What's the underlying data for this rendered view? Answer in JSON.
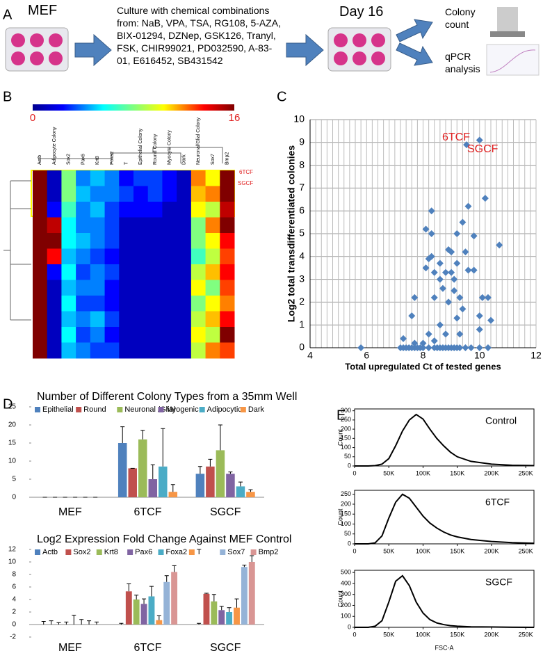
{
  "panels": [
    "A",
    "B",
    "C",
    "D",
    "E"
  ],
  "workflow": {
    "start": "MEF",
    "step": "Culture with chemical combinations from: NaB, VPA, TSA, RG108, 5-AZA, BIX-01294, DZNep, GSK126, Tranyl, FSK, CHIR99021, PD032590, A-83-01, E616452, SB431542",
    "end": "Day 16",
    "outputs": [
      "Colony count",
      "qPCR analysis"
    ]
  },
  "chart_data": [
    {
      "type": "heatmap",
      "columns": [
        "Actb",
        "Adipocyte Colony",
        "Sox2",
        "Pax6",
        "Krt8",
        "Foxa2",
        "T",
        "Epithelial Colony",
        "Round Colony",
        "Myocyte Colony",
        "Dark",
        "Neuronal/Glial Colony",
        "Sox7",
        "Bmp2"
      ],
      "zlim": [
        0,
        16
      ],
      "zticks": [
        0,
        16
      ],
      "annotations": [
        "6TCF",
        "SGCF"
      ],
      "values": [
        [
          16,
          1,
          8,
          4,
          5,
          4,
          2,
          3,
          3,
          2,
          1,
          12,
          10,
          16
        ],
        [
          16,
          1,
          8,
          5,
          4,
          4,
          3,
          2,
          3,
          2,
          1,
          11,
          12,
          16
        ],
        [
          16,
          2,
          7,
          4,
          5,
          3,
          2,
          2,
          2,
          1,
          1,
          10,
          9,
          15
        ],
        [
          16,
          15,
          6,
          4,
          4,
          3,
          1,
          1,
          1,
          1,
          1,
          8,
          12,
          16
        ],
        [
          16,
          16,
          6,
          5,
          4,
          3,
          1,
          1,
          1,
          1,
          1,
          8,
          10,
          14
        ],
        [
          16,
          14,
          5,
          4,
          3,
          2,
          1,
          1,
          1,
          1,
          1,
          7,
          9,
          13
        ],
        [
          16,
          2,
          6,
          3,
          4,
          3,
          1,
          1,
          1,
          1,
          1,
          9,
          11,
          14
        ],
        [
          16,
          1,
          5,
          4,
          4,
          2,
          1,
          1,
          1,
          1,
          1,
          10,
          8,
          13
        ],
        [
          16,
          1,
          6,
          3,
          3,
          2,
          1,
          1,
          1,
          1,
          1,
          8,
          10,
          12
        ],
        [
          16,
          1,
          5,
          4,
          5,
          3,
          1,
          1,
          1,
          1,
          1,
          9,
          11,
          14
        ],
        [
          16,
          1,
          6,
          3,
          4,
          2,
          1,
          1,
          1,
          1,
          1,
          10,
          9,
          16
        ],
        [
          16,
          1,
          5,
          4,
          3,
          3,
          1,
          1,
          1,
          1,
          1,
          9,
          12,
          13
        ]
      ]
    },
    {
      "type": "scatter",
      "x_label": "Total upregulated Ct of tested genes",
      "y_label": "Log2 total transdifferentiated colonies",
      "color": "#4f81bd",
      "grid": true,
      "xlim": [
        4,
        12
      ],
      "xticks": [
        4,
        6,
        8,
        10,
        12
      ],
      "ylim": [
        0,
        10
      ],
      "yticks": [
        0,
        1,
        2,
        3,
        4,
        5,
        6,
        7,
        8,
        9,
        10
      ],
      "annotations": [
        "6TCF",
        "SGCF"
      ],
      "x": [
        5.8,
        7.2,
        7.3,
        7.4,
        7.5,
        7.6,
        7.7,
        7.8,
        7.9,
        8.0,
        8.2,
        8.4,
        8.5,
        8.6,
        8.7,
        8.8,
        8.9,
        9.0,
        9.1,
        9.2,
        9.3,
        9.5,
        9.7,
        10.0,
        10.3,
        7.3,
        7.7,
        7.6,
        7.7,
        8.0,
        8.2,
        8.4,
        8.6,
        8.1,
        8.1,
        8.2,
        8.3,
        8.3,
        8.3,
        8.4,
        8.4,
        8.6,
        8.6,
        8.7,
        8.8,
        8.8,
        8.9,
        8.9,
        9.0,
        9.0,
        9.1,
        9.1,
        9.2,
        9.2,
        9.3,
        9.4,
        9.4,
        9.3,
        9.2,
        9.6,
        9.6,
        9.5,
        9.54,
        10.0,
        10.2,
        10.0,
        10.1,
        10.3,
        10.4,
        9.8,
        10.7,
        10.0,
        9.8
      ],
      "values": [
        0,
        0,
        0,
        0,
        0,
        0,
        0,
        0,
        0,
        0,
        0,
        0,
        0,
        0,
        0,
        0,
        0,
        0,
        0,
        0,
        0,
        0,
        0,
        0,
        0,
        0.4,
        0.2,
        1.4,
        2.2,
        0.2,
        0.6,
        0.3,
        1,
        3.5,
        5.2,
        3.9,
        4.0,
        5.0,
        6.0,
        3.3,
        2.2,
        3.0,
        3.7,
        2.6,
        0.6,
        3.3,
        4.3,
        2.0,
        3.3,
        4.2,
        2.5,
        3.0,
        5.0,
        3.7,
        2.2,
        1.7,
        5.5,
        0.6,
        1.3,
        6.2,
        3.4,
        4.2,
        8.9,
        9.1,
        6.55,
        1.4,
        2.2,
        2.2,
        1.2,
        3.4,
        4.5,
        0.8,
        4.9
      ]
    },
    {
      "type": "bar",
      "title": "Number of Different Colony Types from a 35mm Well",
      "categories": [
        "MEF",
        "6TCF",
        "SGCF"
      ],
      "ylim": [
        0,
        25
      ],
      "yticks": [
        0,
        5,
        10,
        15,
        20,
        25
      ],
      "series": [
        {
          "name": "Epithelial",
          "color": "#4f81bd",
          "values": [
            0,
            15,
            6.5
          ],
          "errors": [
            0,
            4.5,
            2
          ]
        },
        {
          "name": "Round",
          "color": "#c0504d",
          "values": [
            0,
            8,
            8.5
          ],
          "errors": [
            0,
            0,
            2
          ]
        },
        {
          "name": "Neuronal /Glial",
          "color": "#9bbb59",
          "values": [
            0,
            16,
            13
          ],
          "errors": [
            0,
            2.5,
            7
          ]
        },
        {
          "name": "Myogenic",
          "color": "#8064a2",
          "values": [
            0,
            5,
            6.5
          ],
          "errors": [
            0,
            4,
            0.5
          ]
        },
        {
          "name": "Adipocytic",
          "color": "#4bacc6",
          "values": [
            0,
            8.5,
            3
          ],
          "errors": [
            0,
            10.5,
            1.2
          ]
        },
        {
          "name": "Dark",
          "color": "#f79646",
          "values": [
            0,
            1.5,
            1.5
          ],
          "errors": [
            0,
            2,
            0.6
          ]
        }
      ]
    },
    {
      "type": "bar",
      "title": "Log2 Expression Fold Change Against MEF Control",
      "categories": [
        "MEF",
        "6TCF",
        "SGCF"
      ],
      "ylim": [
        -2,
        12
      ],
      "yticks": [
        -2,
        0,
        2,
        4,
        6,
        8,
        10,
        12
      ],
      "series": [
        {
          "name": "Actb",
          "color": "#4f81bd",
          "values": [
            0,
            0,
            0
          ],
          "errors": [
            0.5,
            0.2,
            0.2
          ]
        },
        {
          "name": "Sox2",
          "color": "#c0504d",
          "values": [
            0,
            5.3,
            4.9
          ],
          "errors": [
            0.6,
            1.2,
            0.1
          ]
        },
        {
          "name": "Krt8",
          "color": "#9bbb59",
          "values": [
            0,
            4,
            3.7
          ],
          "errors": [
            0.3,
            0.7,
            1.1
          ]
        },
        {
          "name": "Pax6",
          "color": "#8064a2",
          "values": [
            0,
            3.3,
            2.3
          ],
          "errors": [
            0.4,
            0.8,
            0.6
          ]
        },
        {
          "name": "Foxa2",
          "color": "#4bacc6",
          "values": [
            0,
            4.5,
            2
          ],
          "errors": [
            1.5,
            1.6,
            0.7
          ]
        },
        {
          "name": "T",
          "color": "#f79646",
          "values": [
            0,
            0.7,
            2.7
          ],
          "errors": [
            0.8,
            0.7,
            1.4
          ]
        },
        {
          "name": "Sox7",
          "color": "#95b3d7",
          "values": [
            0,
            6.8,
            9.2
          ],
          "errors": [
            0.6,
            1.0,
            0.3
          ]
        },
        {
          "name": "Bmp2",
          "color": "#d99694",
          "values": [
            0,
            8.4,
            10
          ],
          "errors": [
            0.4,
            1.0,
            1.0
          ]
        }
      ]
    },
    {
      "type": "line",
      "title": "Control",
      "y_label": "Count",
      "color": "#000000",
      "xlim": [
        0,
        262000
      ],
      "ylim": [
        0,
        310
      ],
      "yticks": [
        0,
        50,
        100,
        150,
        200,
        250,
        300
      ],
      "xticks": [
        0,
        {
          "value": 50000,
          "label": "50K"
        },
        {
          "value": 100000,
          "label": "100K"
        },
        {
          "value": 150000,
          "label": "150K"
        },
        {
          "value": 200000,
          "label": "200K"
        },
        {
          "value": 250000,
          "label": "250K"
        }
      ],
      "x": [
        0,
        20000,
        30000,
        40000,
        50000,
        60000,
        70000,
        80000,
        90000,
        100000,
        110000,
        120000,
        130000,
        140000,
        150000,
        170000,
        200000,
        230000,
        262000
      ],
      "values": [
        0,
        0,
        2,
        10,
        40,
        110,
        190,
        250,
        280,
        255,
        200,
        150,
        110,
        75,
        50,
        25,
        10,
        4,
        2
      ]
    },
    {
      "type": "line",
      "title": "6TCF",
      "y_label": "Count",
      "color": "#000000",
      "xlim": [
        0,
        262000
      ],
      "ylim": [
        0,
        270
      ],
      "yticks": [
        0,
        50,
        100,
        150,
        200,
        250
      ],
      "xticks": [
        0,
        {
          "value": 50000,
          "label": "50K"
        },
        {
          "value": 100000,
          "label": "100K"
        },
        {
          "value": 150000,
          "label": "150K"
        },
        {
          "value": 200000,
          "label": "200K"
        },
        {
          "value": 250000,
          "label": "250K"
        }
      ],
      "x": [
        0,
        20000,
        30000,
        40000,
        50000,
        60000,
        70000,
        80000,
        90000,
        100000,
        110000,
        120000,
        130000,
        140000,
        150000,
        170000,
        200000,
        230000,
        262000
      ],
      "values": [
        0,
        0,
        5,
        40,
        130,
        210,
        250,
        230,
        185,
        140,
        105,
        80,
        60,
        45,
        35,
        22,
        12,
        6,
        3
      ]
    },
    {
      "type": "line",
      "title": "SGCF",
      "y_label": "Count",
      "x_label": "FSC-A",
      "color": "#000000",
      "xlim": [
        0,
        262000
      ],
      "ylim": [
        0,
        520
      ],
      "yticks": [
        0,
        100,
        200,
        300,
        400,
        500
      ],
      "xticks": [
        0,
        {
          "value": 50000,
          "label": "50K"
        },
        {
          "value": 100000,
          "label": "100K"
        },
        {
          "value": 150000,
          "label": "150K"
        },
        {
          "value": 200000,
          "label": "200K"
        },
        {
          "value": 250000,
          "label": "250K"
        }
      ],
      "x": [
        0,
        20000,
        30000,
        40000,
        50000,
        60000,
        70000,
        80000,
        90000,
        100000,
        110000,
        120000,
        130000,
        140000,
        150000,
        170000,
        200000,
        230000,
        262000
      ],
      "values": [
        0,
        0,
        10,
        60,
        230,
        420,
        470,
        380,
        230,
        130,
        70,
        40,
        25,
        15,
        10,
        5,
        3,
        1,
        0
      ]
    }
  ]
}
